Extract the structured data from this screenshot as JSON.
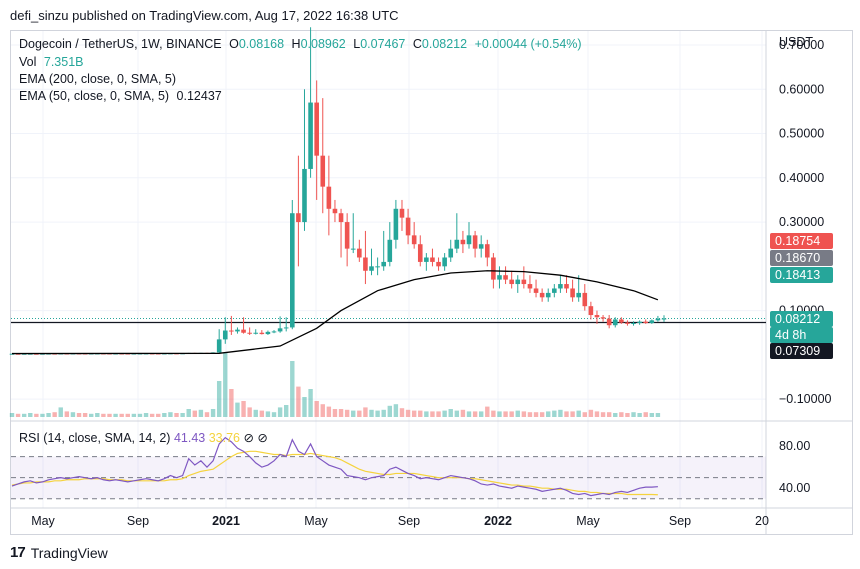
{
  "header": {
    "publish_line": "defi_sinzu published on TradingView.com, Aug 17, 2022 16:38 UTC"
  },
  "legend": {
    "symbol": "Dogecoin / TetherUS, 1W, BINANCE",
    "o_label": "O",
    "o_value": "0.08168",
    "h_label": "H",
    "h_value": "0.08962",
    "l_label": "L",
    "l_value": "0.07467",
    "c_label": "C",
    "c_value": "0.08212",
    "change": "+0.00044 (+0.54%)",
    "vol_label": "Vol",
    "vol_value": "7.351B",
    "ema200_label": "EMA (200, close, 0, SMA, 5)",
    "ema50_label": "EMA (50, close, 0, SMA, 5)",
    "ema50_value": "0.12437"
  },
  "rsi_legend": {
    "label": "RSI (14, close, SMA, 14, 2)",
    "rsi_value": "41.43",
    "sma_value": "33.76",
    "icons": "⊘ ⊘"
  },
  "price_axis": {
    "currency": "USDT",
    "ticks": [
      "0.70000",
      "0.60000",
      "0.50000",
      "0.40000",
      "0.30000",
      "0.10000",
      "−0.10000"
    ],
    "tags": [
      {
        "text": "0.18754",
        "color": "#ef5350"
      },
      {
        "text": "0.18670",
        "color": "#787b86"
      },
      {
        "text": "0.18413",
        "color": "#26a69a"
      },
      {
        "text": "0.08212",
        "color": "#26a69a"
      },
      {
        "text": "4d 8h",
        "color": "#26a69a"
      },
      {
        "text": "0.07309",
        "color": "#131722"
      }
    ]
  },
  "rsi_axis": {
    "ticks": [
      "80.00",
      "40.00"
    ]
  },
  "time_axis": {
    "ticks": [
      "May",
      "Sep",
      "2021",
      "May",
      "Sep",
      "2022",
      "May",
      "Sep",
      "20"
    ]
  },
  "footer": {
    "brand": "TradingView",
    "logo_text": "17"
  },
  "colors": {
    "up": "#26a69a",
    "down": "#ef5350",
    "ema": "#000000",
    "rsi": "#7e57c2",
    "rsi_sma": "#f5d33d"
  },
  "chart_data": {
    "type": "candlestick",
    "title": "Dogecoin / TetherUS, 1W, BINANCE",
    "ylabel": "USDT",
    "ylim": [
      -0.12,
      0.7
    ],
    "grid": true,
    "reference_line": 0.07309,
    "candles": [
      {
        "o": 0.0025,
        "h": 0.0027,
        "l": 0.0023,
        "c": 0.0026
      },
      {
        "o": 0.0026,
        "h": 0.0028,
        "l": 0.0024,
        "c": 0.0025
      },
      {
        "o": 0.0025,
        "h": 0.0027,
        "l": 0.0024,
        "c": 0.0026
      },
      {
        "o": 0.0026,
        "h": 0.0029,
        "l": 0.0025,
        "c": 0.0027
      },
      {
        "o": 0.0027,
        "h": 0.0028,
        "l": 0.0025,
        "c": 0.0026
      },
      {
        "o": 0.0026,
        "h": 0.0028,
        "l": 0.0025,
        "c": 0.0027
      },
      {
        "o": 0.0027,
        "h": 0.0031,
        "l": 0.0026,
        "c": 0.003
      },
      {
        "o": 0.003,
        "h": 0.0032,
        "l": 0.0028,
        "c": 0.0029
      },
      {
        "o": 0.0029,
        "h": 0.0033,
        "l": 0.0028,
        "c": 0.0032
      },
      {
        "o": 0.0032,
        "h": 0.0035,
        "l": 0.003,
        "c": 0.0031
      },
      {
        "o": 0.0031,
        "h": 0.0034,
        "l": 0.003,
        "c": 0.0033
      },
      {
        "o": 0.0033,
        "h": 0.0036,
        "l": 0.0031,
        "c": 0.0032
      },
      {
        "o": 0.0032,
        "h": 0.0034,
        "l": 0.003,
        "c": 0.0031
      },
      {
        "o": 0.0031,
        "h": 0.0033,
        "l": 0.0029,
        "c": 0.0032
      },
      {
        "o": 0.0032,
        "h": 0.0034,
        "l": 0.003,
        "c": 0.0033
      },
      {
        "o": 0.0033,
        "h": 0.0035,
        "l": 0.0031,
        "c": 0.0032
      },
      {
        "o": 0.0032,
        "h": 0.0034,
        "l": 0.003,
        "c": 0.0031
      },
      {
        "o": 0.0031,
        "h": 0.0033,
        "l": 0.0029,
        "c": 0.0032
      },
      {
        "o": 0.0032,
        "h": 0.0034,
        "l": 0.003,
        "c": 0.0031
      },
      {
        "o": 0.0031,
        "h": 0.0033,
        "l": 0.0029,
        "c": 0.003
      },
      {
        "o": 0.003,
        "h": 0.0032,
        "l": 0.0028,
        "c": 0.0031
      },
      {
        "o": 0.0031,
        "h": 0.0033,
        "l": 0.0029,
        "c": 0.0032
      },
      {
        "o": 0.0032,
        "h": 0.0034,
        "l": 0.003,
        "c": 0.0033
      },
      {
        "o": 0.0033,
        "h": 0.0035,
        "l": 0.0031,
        "c": 0.0032
      },
      {
        "o": 0.0032,
        "h": 0.0034,
        "l": 0.003,
        "c": 0.0031
      },
      {
        "o": 0.0031,
        "h": 0.0034,
        "l": 0.003,
        "c": 0.0033
      },
      {
        "o": 0.0033,
        "h": 0.0036,
        "l": 0.0032,
        "c": 0.0035
      },
      {
        "o": 0.0035,
        "h": 0.0038,
        "l": 0.0033,
        "c": 0.0034
      },
      {
        "o": 0.0034,
        "h": 0.0037,
        "l": 0.0033,
        "c": 0.0036
      },
      {
        "o": 0.0036,
        "h": 0.0045,
        "l": 0.0035,
        "c": 0.0044
      },
      {
        "o": 0.0044,
        "h": 0.0047,
        "l": 0.0037,
        "c": 0.0038
      },
      {
        "o": 0.0038,
        "h": 0.0046,
        "l": 0.0037,
        "c": 0.0045
      },
      {
        "o": 0.0045,
        "h": 0.0047,
        "l": 0.0042,
        "c": 0.0043
      },
      {
        "o": 0.0043,
        "h": 0.0058,
        "l": 0.0042,
        "c": 0.0055
      },
      {
        "o": 0.0055,
        "h": 0.058,
        "l": 0.0055,
        "c": 0.035
      },
      {
        "o": 0.035,
        "h": 0.085,
        "l": 0.025,
        "c": 0.055
      },
      {
        "o": 0.055,
        "h": 0.088,
        "l": 0.045,
        "c": 0.053
      },
      {
        "o": 0.053,
        "h": 0.062,
        "l": 0.048,
        "c": 0.057
      },
      {
        "o": 0.057,
        "h": 0.085,
        "l": 0.048,
        "c": 0.05
      },
      {
        "o": 0.05,
        "h": 0.062,
        "l": 0.045,
        "c": 0.048
      },
      {
        "o": 0.048,
        "h": 0.058,
        "l": 0.046,
        "c": 0.05
      },
      {
        "o": 0.05,
        "h": 0.056,
        "l": 0.046,
        "c": 0.047
      },
      {
        "o": 0.047,
        "h": 0.055,
        "l": 0.045,
        "c": 0.052
      },
      {
        "o": 0.052,
        "h": 0.056,
        "l": 0.049,
        "c": 0.053
      },
      {
        "o": 0.053,
        "h": 0.087,
        "l": 0.05,
        "c": 0.06
      },
      {
        "o": 0.06,
        "h": 0.085,
        "l": 0.053,
        "c": 0.062
      },
      {
        "o": 0.062,
        "h": 0.35,
        "l": 0.058,
        "c": 0.32
      },
      {
        "o": 0.32,
        "h": 0.45,
        "l": 0.2,
        "c": 0.3
      },
      {
        "o": 0.3,
        "h": 0.6,
        "l": 0.28,
        "c": 0.42
      },
      {
        "o": 0.42,
        "h": 0.74,
        "l": 0.4,
        "c": 0.57
      },
      {
        "o": 0.57,
        "h": 0.62,
        "l": 0.35,
        "c": 0.45
      },
      {
        "o": 0.45,
        "h": 0.58,
        "l": 0.32,
        "c": 0.38
      },
      {
        "o": 0.38,
        "h": 0.45,
        "l": 0.27,
        "c": 0.33
      },
      {
        "o": 0.33,
        "h": 0.35,
        "l": 0.3,
        "c": 0.32
      },
      {
        "o": 0.32,
        "h": 0.33,
        "l": 0.22,
        "c": 0.3
      },
      {
        "o": 0.3,
        "h": 0.32,
        "l": 0.2,
        "c": 0.24
      },
      {
        "o": 0.24,
        "h": 0.32,
        "l": 0.23,
        "c": 0.24
      },
      {
        "o": 0.24,
        "h": 0.26,
        "l": 0.21,
        "c": 0.22
      },
      {
        "o": 0.22,
        "h": 0.28,
        "l": 0.16,
        "c": 0.19
      },
      {
        "o": 0.19,
        "h": 0.24,
        "l": 0.18,
        "c": 0.2
      },
      {
        "o": 0.2,
        "h": 0.22,
        "l": 0.18,
        "c": 0.2
      },
      {
        "o": 0.2,
        "h": 0.28,
        "l": 0.19,
        "c": 0.21
      },
      {
        "o": 0.21,
        "h": 0.3,
        "l": 0.2,
        "c": 0.26
      },
      {
        "o": 0.26,
        "h": 0.35,
        "l": 0.24,
        "c": 0.33
      },
      {
        "o": 0.33,
        "h": 0.35,
        "l": 0.28,
        "c": 0.31
      },
      {
        "o": 0.31,
        "h": 0.33,
        "l": 0.25,
        "c": 0.27
      },
      {
        "o": 0.27,
        "h": 0.3,
        "l": 0.24,
        "c": 0.25
      },
      {
        "o": 0.25,
        "h": 0.27,
        "l": 0.2,
        "c": 0.21
      },
      {
        "o": 0.21,
        "h": 0.23,
        "l": 0.19,
        "c": 0.22
      },
      {
        "o": 0.22,
        "h": 0.24,
        "l": 0.2,
        "c": 0.21
      },
      {
        "o": 0.21,
        "h": 0.22,
        "l": 0.19,
        "c": 0.2
      },
      {
        "o": 0.2,
        "h": 0.23,
        "l": 0.19,
        "c": 0.22
      },
      {
        "o": 0.22,
        "h": 0.26,
        "l": 0.21,
        "c": 0.24
      },
      {
        "o": 0.24,
        "h": 0.32,
        "l": 0.23,
        "c": 0.26
      },
      {
        "o": 0.26,
        "h": 0.28,
        "l": 0.23,
        "c": 0.25
      },
      {
        "o": 0.25,
        "h": 0.3,
        "l": 0.24,
        "c": 0.27
      },
      {
        "o": 0.27,
        "h": 0.28,
        "l": 0.22,
        "c": 0.24
      },
      {
        "o": 0.24,
        "h": 0.27,
        "l": 0.22,
        "c": 0.25
      },
      {
        "o": 0.25,
        "h": 0.26,
        "l": 0.2,
        "c": 0.22
      },
      {
        "o": 0.22,
        "h": 0.23,
        "l": 0.15,
        "c": 0.17
      },
      {
        "o": 0.17,
        "h": 0.2,
        "l": 0.15,
        "c": 0.18
      },
      {
        "o": 0.18,
        "h": 0.2,
        "l": 0.16,
        "c": 0.17
      },
      {
        "o": 0.17,
        "h": 0.19,
        "l": 0.15,
        "c": 0.16
      },
      {
        "o": 0.16,
        "h": 0.18,
        "l": 0.14,
        "c": 0.17
      },
      {
        "o": 0.17,
        "h": 0.2,
        "l": 0.15,
        "c": 0.16
      },
      {
        "o": 0.16,
        "h": 0.18,
        "l": 0.14,
        "c": 0.15
      },
      {
        "o": 0.15,
        "h": 0.17,
        "l": 0.13,
        "c": 0.14
      },
      {
        "o": 0.14,
        "h": 0.15,
        "l": 0.12,
        "c": 0.13
      },
      {
        "o": 0.13,
        "h": 0.15,
        "l": 0.12,
        "c": 0.14
      },
      {
        "o": 0.14,
        "h": 0.16,
        "l": 0.13,
        "c": 0.15
      },
      {
        "o": 0.15,
        "h": 0.18,
        "l": 0.14,
        "c": 0.16
      },
      {
        "o": 0.16,
        "h": 0.18,
        "l": 0.14,
        "c": 0.15
      },
      {
        "o": 0.15,
        "h": 0.17,
        "l": 0.12,
        "c": 0.13
      },
      {
        "o": 0.13,
        "h": 0.18,
        "l": 0.12,
        "c": 0.14
      },
      {
        "o": 0.14,
        "h": 0.16,
        "l": 0.1,
        "c": 0.11
      },
      {
        "o": 0.11,
        "h": 0.12,
        "l": 0.08,
        "c": 0.09
      },
      {
        "o": 0.09,
        "h": 0.1,
        "l": 0.07,
        "c": 0.085
      },
      {
        "o": 0.085,
        "h": 0.09,
        "l": 0.075,
        "c": 0.082
      },
      {
        "o": 0.082,
        "h": 0.09,
        "l": 0.06,
        "c": 0.067
      },
      {
        "o": 0.067,
        "h": 0.085,
        "l": 0.062,
        "c": 0.08
      },
      {
        "o": 0.08,
        "h": 0.085,
        "l": 0.07,
        "c": 0.073
      },
      {
        "o": 0.073,
        "h": 0.078,
        "l": 0.066,
        "c": 0.07
      },
      {
        "o": 0.07,
        "h": 0.076,
        "l": 0.066,
        "c": 0.072
      },
      {
        "o": 0.072,
        "h": 0.078,
        "l": 0.068,
        "c": 0.075
      },
      {
        "o": 0.075,
        "h": 0.08,
        "l": 0.07,
        "c": 0.072
      },
      {
        "o": 0.072,
        "h": 0.08,
        "l": 0.07,
        "c": 0.078
      },
      {
        "o": 0.078,
        "h": 0.088,
        "l": 0.075,
        "c": 0.0817
      },
      {
        "o": 0.08168,
        "h": 0.08962,
        "l": 0.07467,
        "c": 0.08212
      }
    ],
    "ema50": [
      [
        0,
        0.003
      ],
      [
        34,
        0.0035
      ],
      [
        44,
        0.02
      ],
      [
        50,
        0.06
      ],
      [
        54,
        0.1
      ],
      [
        60,
        0.145
      ],
      [
        66,
        0.17
      ],
      [
        72,
        0.185
      ],
      [
        78,
        0.19
      ],
      [
        84,
        0.188
      ],
      [
        90,
        0.18
      ],
      [
        96,
        0.165
      ],
      [
        102,
        0.145
      ],
      [
        106,
        0.12437
      ]
    ],
    "volume": [
      0.5,
      0.4,
      0.4,
      0.5,
      0.4,
      0.4,
      0.5,
      0.6,
      1.2,
      0.7,
      0.6,
      0.5,
      0.5,
      0.4,
      0.5,
      0.4,
      0.4,
      0.4,
      0.4,
      0.4,
      0.4,
      0.4,
      0.5,
      0.4,
      0.4,
      0.5,
      0.6,
      0.5,
      0.5,
      1.0,
      0.8,
      0.9,
      0.6,
      1.0,
      4.5,
      8.0,
      3.5,
      1.8,
      2.0,
      1.2,
      0.9,
      0.8,
      0.7,
      0.6,
      1.2,
      1.5,
      7.0,
      3.8,
      2.5,
      3.5,
      2.0,
      1.6,
      1.3,
      1.0,
      1.0,
      0.9,
      0.8,
      0.8,
      1.2,
      0.9,
      0.8,
      0.9,
      1.4,
      1.6,
      1.1,
      0.9,
      0.8,
      0.8,
      0.7,
      0.7,
      0.7,
      0.8,
      1.0,
      0.8,
      0.9,
      0.7,
      0.7,
      0.7,
      1.3,
      0.8,
      0.7,
      0.7,
      0.7,
      0.8,
      0.7,
      0.6,
      0.6,
      0.6,
      0.7,
      0.8,
      0.9,
      0.7,
      0.7,
      0.8,
      0.6,
      0.9,
      0.7,
      0.6,
      0.6,
      0.5,
      0.6,
      0.5,
      0.6,
      0.5,
      0.6,
      0.5,
      0.5
    ],
    "rsi": [
      42,
      44,
      46,
      47,
      45,
      46,
      48,
      49,
      50,
      49,
      50,
      51,
      50,
      49,
      50,
      48,
      47,
      48,
      47,
      46,
      47,
      48,
      49,
      48,
      47,
      49,
      52,
      50,
      52,
      68,
      62,
      66,
      60,
      66,
      82,
      88,
      84,
      78,
      75,
      70,
      64,
      60,
      62,
      66,
      72,
      70,
      86,
      75,
      72,
      82,
      70,
      66,
      62,
      60,
      58,
      52,
      51,
      50,
      48,
      50,
      51,
      52,
      58,
      60,
      57,
      54,
      52,
      49,
      50,
      49,
      48,
      50,
      52,
      51,
      50,
      49,
      47,
      44,
      43,
      44,
      42,
      41,
      40,
      42,
      41,
      40,
      39,
      37,
      38,
      39,
      40,
      38,
      35,
      34,
      35,
      33,
      34,
      35,
      34,
      36,
      37,
      36,
      38,
      40,
      41,
      41,
      41.43
    ],
    "rsi_sma": [
      43,
      44,
      45,
      45,
      46,
      46,
      46,
      47,
      47,
      48,
      48,
      48,
      49,
      49,
      49,
      49,
      48,
      48,
      48,
      47,
      47,
      47,
      47,
      47,
      47,
      47,
      48,
      48,
      49,
      52,
      54,
      56,
      57,
      58,
      62,
      66,
      70,
      73,
      74,
      75,
      75,
      74,
      73,
      72,
      72,
      71,
      72,
      72,
      72,
      73,
      72,
      71,
      70,
      69,
      67,
      64,
      61,
      58,
      56,
      55,
      54,
      53,
      53,
      54,
      54,
      54,
      54,
      53,
      52,
      51,
      50,
      50,
      50,
      50,
      50,
      49,
      49,
      48,
      47,
      46,
      45,
      44,
      43,
      43,
      42,
      42,
      41,
      40,
      40,
      39,
      39,
      39,
      38,
      37,
      37,
      36,
      36,
      35,
      35,
      35,
      35,
      34,
      34,
      34,
      34,
      34,
      33.76
    ],
    "rsi_ylim": [
      25,
      100
    ],
    "rsi_band": [
      30,
      70
    ]
  }
}
